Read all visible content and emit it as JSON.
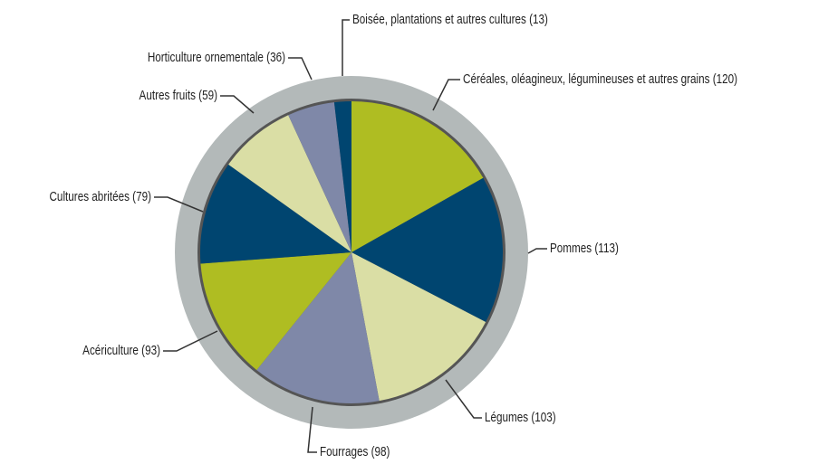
{
  "chart_data": {
    "type": "pie",
    "categories": [
      "Céréales, oléagineux, légumineuses et autres grains (120)",
      "Pommes (113)",
      "Légumes (103)",
      "Fourrages (98)",
      "Acériculture (93)",
      "Cultures abritées (79)",
      "Autres fruits (59)",
      "Horticulture ornementale (36)",
      "Boisée, plantations et autres cultures (13)"
    ],
    "values": [
      120,
      113,
      103,
      98,
      93,
      79,
      59,
      36,
      13
    ],
    "colors": [
      "#afbd22",
      "#004570",
      "#dadea5",
      "#7f88a8",
      "#afbd22",
      "#004570",
      "#dadea5",
      "#7f88a8",
      "#004570"
    ]
  }
}
